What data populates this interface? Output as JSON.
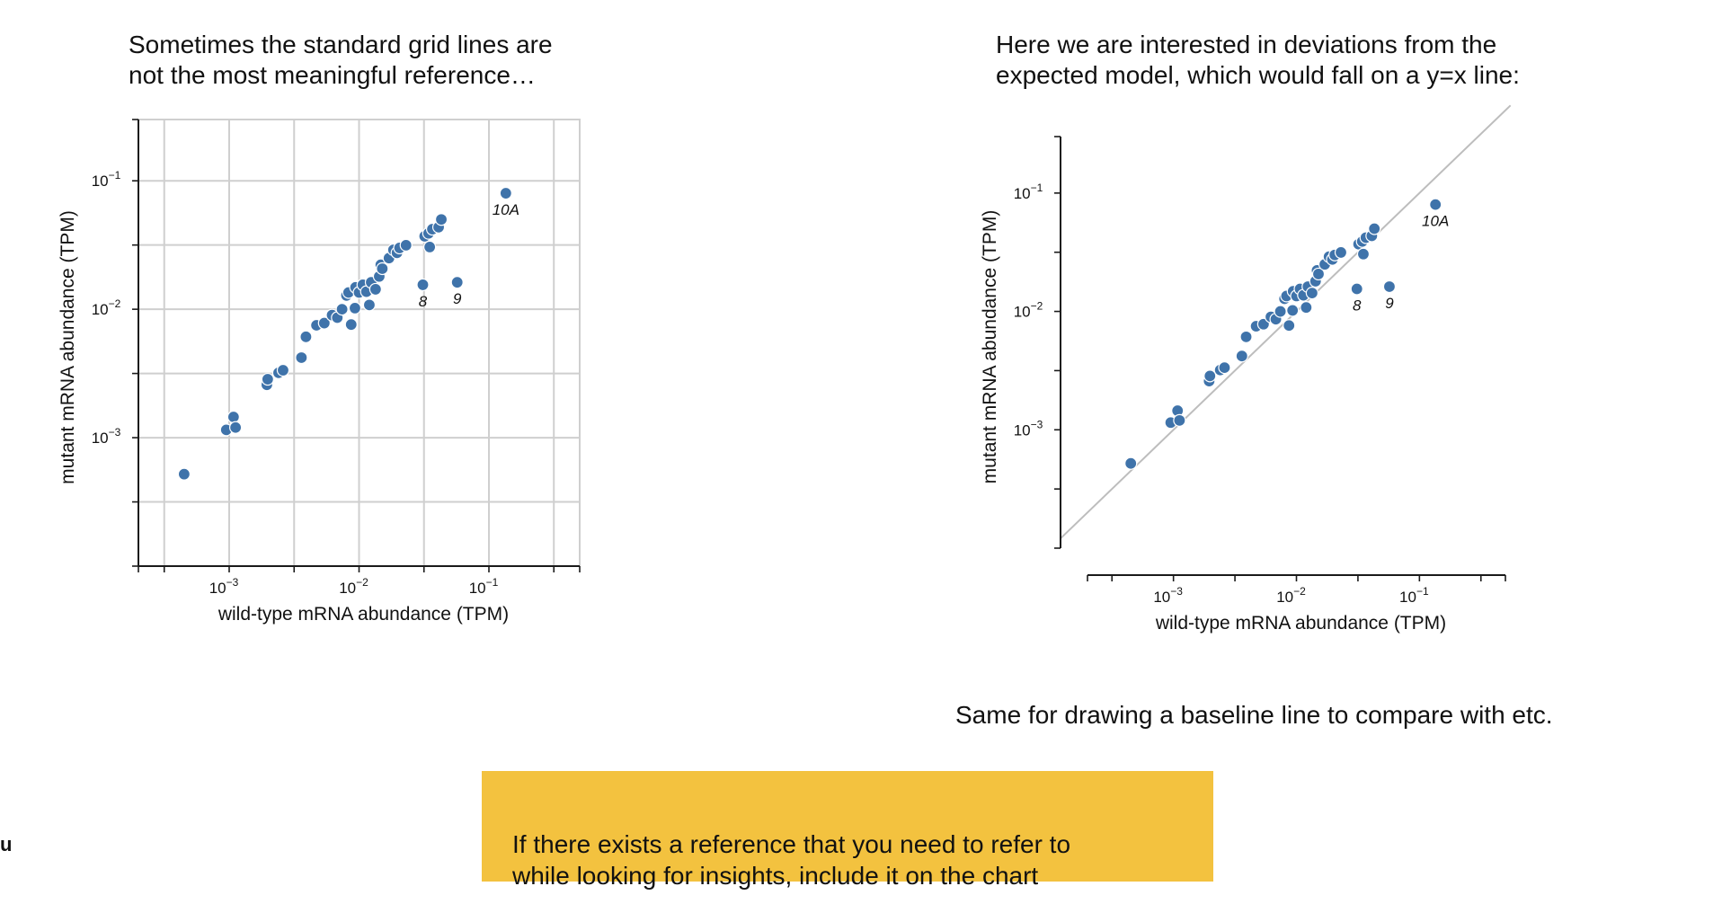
{
  "captions": {
    "left": "Sometimes the standard grid lines are\nnot the most meaningful reference…",
    "right": "Here we are interested in deviations from the\nexpected model, which would fall on a y=x line:",
    "baseline": "Same for drawing a baseline line to compare with etc.",
    "callout": "If there exists a reference that you need to refer to\nwhile looking for insights, include it on the chart",
    "edge_fragment": "u"
  },
  "colors": {
    "point": "#3f73aa",
    "grid": "#cfcfcf",
    "reference_line": "#bdbdbd",
    "callout_background": "#f3c23f"
  },
  "chart_data": [
    {
      "type": "scatter",
      "variant": "grid",
      "xlabel": "wild-type mRNA abundance (TPM)",
      "ylabel": "mutant mRNA abundance (TPM)",
      "xscale": "log",
      "yscale": "log",
      "xlim": [
        0.0002,
        0.5
      ],
      "ylim": [
        0.0001,
        0.3
      ],
      "xtick_labels": [
        {
          "value": 0.001,
          "base": "10",
          "exp": "−3"
        },
        {
          "value": 0.01,
          "base": "10",
          "exp": "−2"
        },
        {
          "value": 0.1,
          "base": "10",
          "exp": "−1"
        }
      ],
      "ytick_labels": [
        {
          "value": 0.001,
          "base": "10",
          "exp": "−3"
        },
        {
          "value": 0.01,
          "base": "10",
          "exp": "−2"
        },
        {
          "value": 0.1,
          "base": "10",
          "exp": "−1"
        }
      ],
      "grid": true,
      "reference_line": "none",
      "point_labels": [
        {
          "label": "10A",
          "x": 0.135,
          "y": 0.08
        },
        {
          "label": "8",
          "x": 0.031,
          "y": 0.0155
        },
        {
          "label": "9",
          "x": 0.057,
          "y": 0.0162
        }
      ]
    },
    {
      "type": "scatter",
      "variant": "reference-line",
      "xlabel": "wild-type mRNA abundance (TPM)",
      "ylabel": "mutant mRNA abundance (TPM)",
      "xscale": "log",
      "yscale": "log",
      "xlim": [
        0.0002,
        0.5
      ],
      "ylim": [
        0.0001,
        0.3
      ],
      "xtick_labels": [
        {
          "value": 0.001,
          "base": "10",
          "exp": "−3"
        },
        {
          "value": 0.01,
          "base": "10",
          "exp": "−2"
        },
        {
          "value": 0.1,
          "base": "10",
          "exp": "−1"
        }
      ],
      "ytick_labels": [
        {
          "value": 0.001,
          "base": "10",
          "exp": "−3"
        },
        {
          "value": 0.01,
          "base": "10",
          "exp": "−2"
        },
        {
          "value": 0.1,
          "base": "10",
          "exp": "−1"
        }
      ],
      "grid": false,
      "reference_line": "y=x",
      "point_labels": [
        {
          "label": "10A",
          "x": 0.135,
          "y": 0.08
        },
        {
          "label": "8",
          "x": 0.031,
          "y": 0.0155
        },
        {
          "label": "9",
          "x": 0.057,
          "y": 0.0162
        }
      ]
    }
  ],
  "points": [
    [
      0.00045,
      0.00052
    ],
    [
      0.00095,
      0.00115
    ],
    [
      0.00108,
      0.00145
    ],
    [
      0.00112,
      0.0012
    ],
    [
      0.00195,
      0.00258
    ],
    [
      0.00198,
      0.00285
    ],
    [
      0.0024,
      0.0032
    ],
    [
      0.0026,
      0.00335
    ],
    [
      0.0036,
      0.0042
    ],
    [
      0.0039,
      0.0061
    ],
    [
      0.0047,
      0.0075
    ],
    [
      0.0054,
      0.0078
    ],
    [
      0.0062,
      0.009
    ],
    [
      0.0068,
      0.0086
    ],
    [
      0.0074,
      0.01
    ],
    [
      0.008,
      0.0128
    ],
    [
      0.0083,
      0.0135
    ],
    [
      0.0087,
      0.0076
    ],
    [
      0.0093,
      0.0102
    ],
    [
      0.0094,
      0.0148
    ],
    [
      0.01,
      0.0135
    ],
    [
      0.0107,
      0.0155
    ],
    [
      0.0114,
      0.0137
    ],
    [
      0.012,
      0.0108
    ],
    [
      0.0124,
      0.0162
    ],
    [
      0.0134,
      0.0143
    ],
    [
      0.0143,
      0.018
    ],
    [
      0.0147,
      0.0222
    ],
    [
      0.0151,
      0.0207
    ],
    [
      0.017,
      0.025
    ],
    [
      0.0184,
      0.029
    ],
    [
      0.0196,
      0.0275
    ],
    [
      0.0205,
      0.03
    ],
    [
      0.023,
      0.0315
    ],
    [
      0.032,
      0.037
    ],
    [
      0.0343,
      0.039
    ],
    [
      0.035,
      0.0305
    ],
    [
      0.0367,
      0.042
    ],
    [
      0.041,
      0.0435
    ],
    [
      0.043,
      0.05
    ],
    [
      0.135,
      0.08
    ],
    [
      0.031,
      0.0155
    ],
    [
      0.057,
      0.0162
    ]
  ]
}
